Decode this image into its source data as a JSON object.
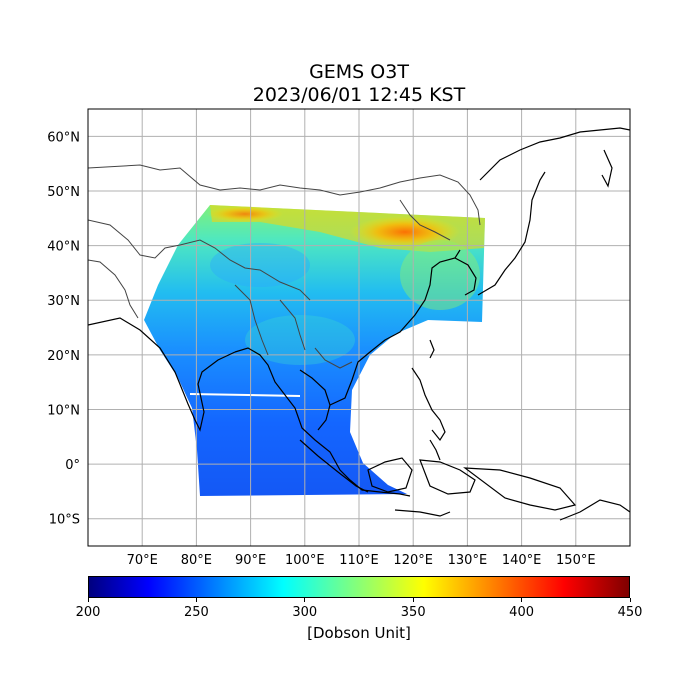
{
  "title": "GEMS O3T",
  "subtitle": "2023/06/01 12:45 KST",
  "map": {
    "lon_range": [
      60,
      160
    ],
    "lat_range": [
      -15,
      65
    ],
    "lon_ticks": [
      "70°E",
      "80°E",
      "90°E",
      "100°E",
      "110°E",
      "120°E",
      "130°E",
      "140°E",
      "150°E"
    ],
    "lat_ticks": [
      "60°N",
      "50°N",
      "40°N",
      "30°N",
      "20°N",
      "10°N",
      "0°",
      "10°S"
    ],
    "gridlines": true,
    "features": [
      "coastlines",
      "country-borders",
      "ozone-field"
    ]
  },
  "colorbar": {
    "colormap": "jet",
    "min": 200,
    "max": 450,
    "ticks": [
      "200",
      "250",
      "300",
      "350",
      "400",
      "450"
    ],
    "label": "[Dobson Unit]"
  }
}
